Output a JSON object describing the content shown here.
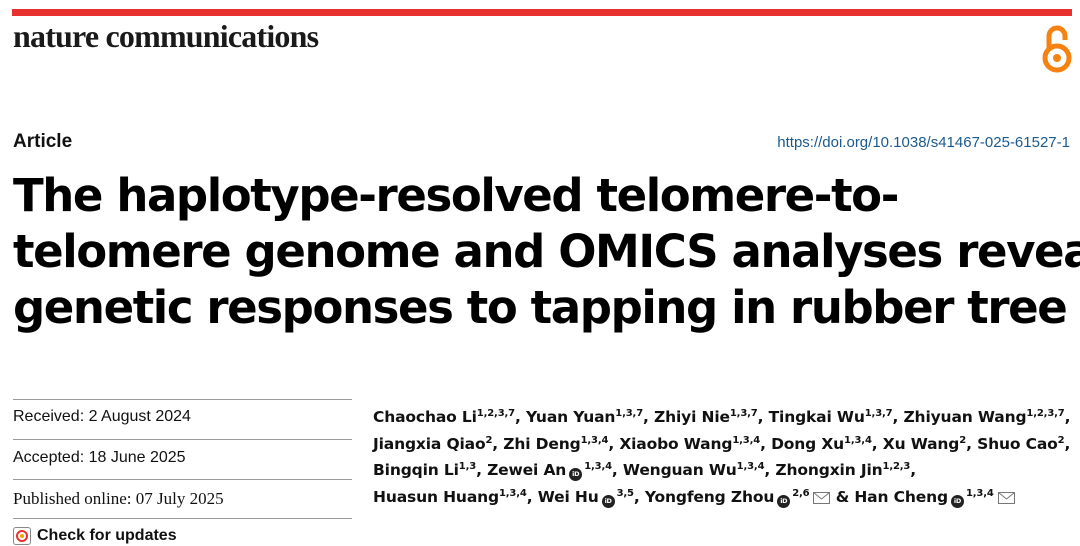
{
  "header": {
    "journal": "nature communications"
  },
  "article": {
    "type": "Article",
    "doi": "https://doi.org/10.1038/s41467-025-61527-1",
    "title_lines": [
      "The haplotype-resolved telomere-to-",
      "telomere genome and OMICS analyses reveal",
      "genetic responses to tapping in rubber tree"
    ]
  },
  "dates": {
    "received": "Received: 2 August 2024",
    "accepted": "Accepted: 18 June 2025",
    "published": "Published online: 07 July 2025"
  },
  "check_updates": "Check for updates",
  "authors": [
    {
      "name": "Chaochao Li",
      "sup": "1,2,3,7"
    },
    {
      "name": "Yuan Yuan",
      "sup": "1,3,7"
    },
    {
      "name": "Zhiyi Nie",
      "sup": "1,3,7"
    },
    {
      "name": "Tingkai Wu",
      "sup": "1,3,7"
    },
    {
      "name": "Zhiyuan Wang",
      "sup": "1,2,3,7"
    },
    {
      "name": "Jiangxia Qiao",
      "sup": "2"
    },
    {
      "name": "Zhi Deng",
      "sup": "1,3,4"
    },
    {
      "name": "Xiaobo Wang",
      "sup": "1,3,4"
    },
    {
      "name": "Dong Xu",
      "sup": "1,3,4"
    },
    {
      "name": "Xu Wang",
      "sup": "2"
    },
    {
      "name": "Shuo Cao",
      "sup": "2"
    },
    {
      "name": "Bingqin Li",
      "sup": "1,3"
    },
    {
      "name": "Zewei An",
      "sup": "1,3,4"
    },
    {
      "name": "Wenguan Wu",
      "sup": "1,3,4"
    },
    {
      "name": "Zhongxin Jin",
      "sup": "1,2,3"
    },
    {
      "name": "Huasun Huang",
      "sup": "1,3,4"
    },
    {
      "name": "Wei Hu",
      "sup": "3,5"
    },
    {
      "name": "Yongfeng Zhou",
      "sup": "2,6"
    },
    {
      "name": "Han Cheng",
      "sup": "1,3,4"
    }
  ],
  "author_connector": "&",
  "icons": {
    "open_access": "open-access-icon",
    "orcid": "orcid-icon",
    "mail": "mail-icon"
  },
  "colors": {
    "accent_bar": "#e8312f",
    "open_access": "#f68212",
    "doi_link": "#1b5a8e"
  }
}
